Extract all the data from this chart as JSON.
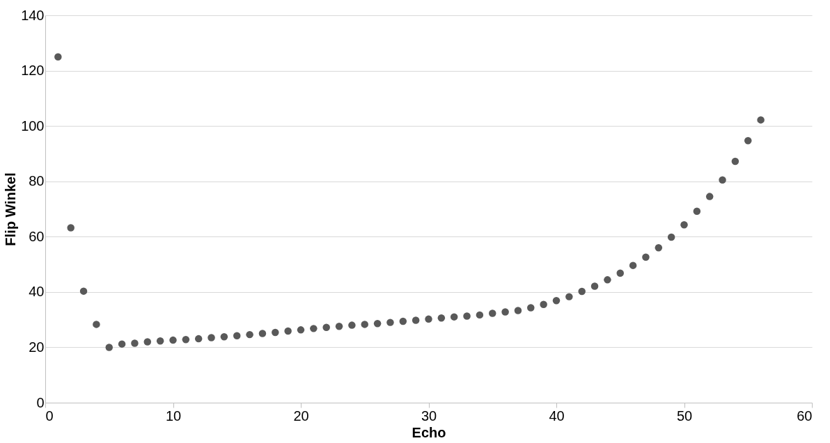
{
  "chart_data": {
    "type": "scatter",
    "xlabel": "Echo",
    "ylabel": "Flip Winkel",
    "x": [
      1,
      2,
      3,
      4,
      5,
      6,
      7,
      8,
      9,
      10,
      11,
      12,
      13,
      14,
      15,
      16,
      17,
      18,
      19,
      20,
      21,
      22,
      23,
      24,
      25,
      26,
      27,
      28,
      29,
      30,
      31,
      32,
      33,
      34,
      35,
      36,
      37,
      38,
      39,
      40,
      41,
      42,
      43,
      44,
      45,
      46,
      47,
      48,
      49,
      50,
      51,
      52,
      53,
      54,
      55,
      56
    ],
    "series": [
      {
        "color": "#595959",
        "values": [
          125,
          63.2,
          40.3,
          28.3,
          20,
          21.2,
          21.5,
          22,
          22.3,
          22.6,
          22.8,
          23.1,
          23.5,
          23.8,
          24.2,
          24.6,
          25,
          25.4,
          25.9,
          26.3,
          26.8,
          27.2,
          27.6,
          28,
          28.3,
          28.6,
          29,
          29.4,
          29.8,
          30.2,
          30.6,
          31,
          31.3,
          31.7,
          32.3,
          32.8,
          33.3,
          34.3,
          35.5,
          36.9,
          38.3,
          40.2,
          42.1,
          44.4,
          46.8,
          49.6,
          52.6,
          56,
          59.8,
          64.3,
          69.2,
          74.5,
          80.5,
          87.2,
          94.7,
          102.2
        ]
      }
    ],
    "xlim": [
      0,
      60
    ],
    "xticks": [
      0,
      10,
      20,
      30,
      40,
      50,
      60
    ],
    "ylim": [
      0,
      140
    ],
    "yticks": [
      0,
      20,
      40,
      60,
      80,
      100,
      120,
      140
    ],
    "grid": "y",
    "marker": "circle"
  }
}
